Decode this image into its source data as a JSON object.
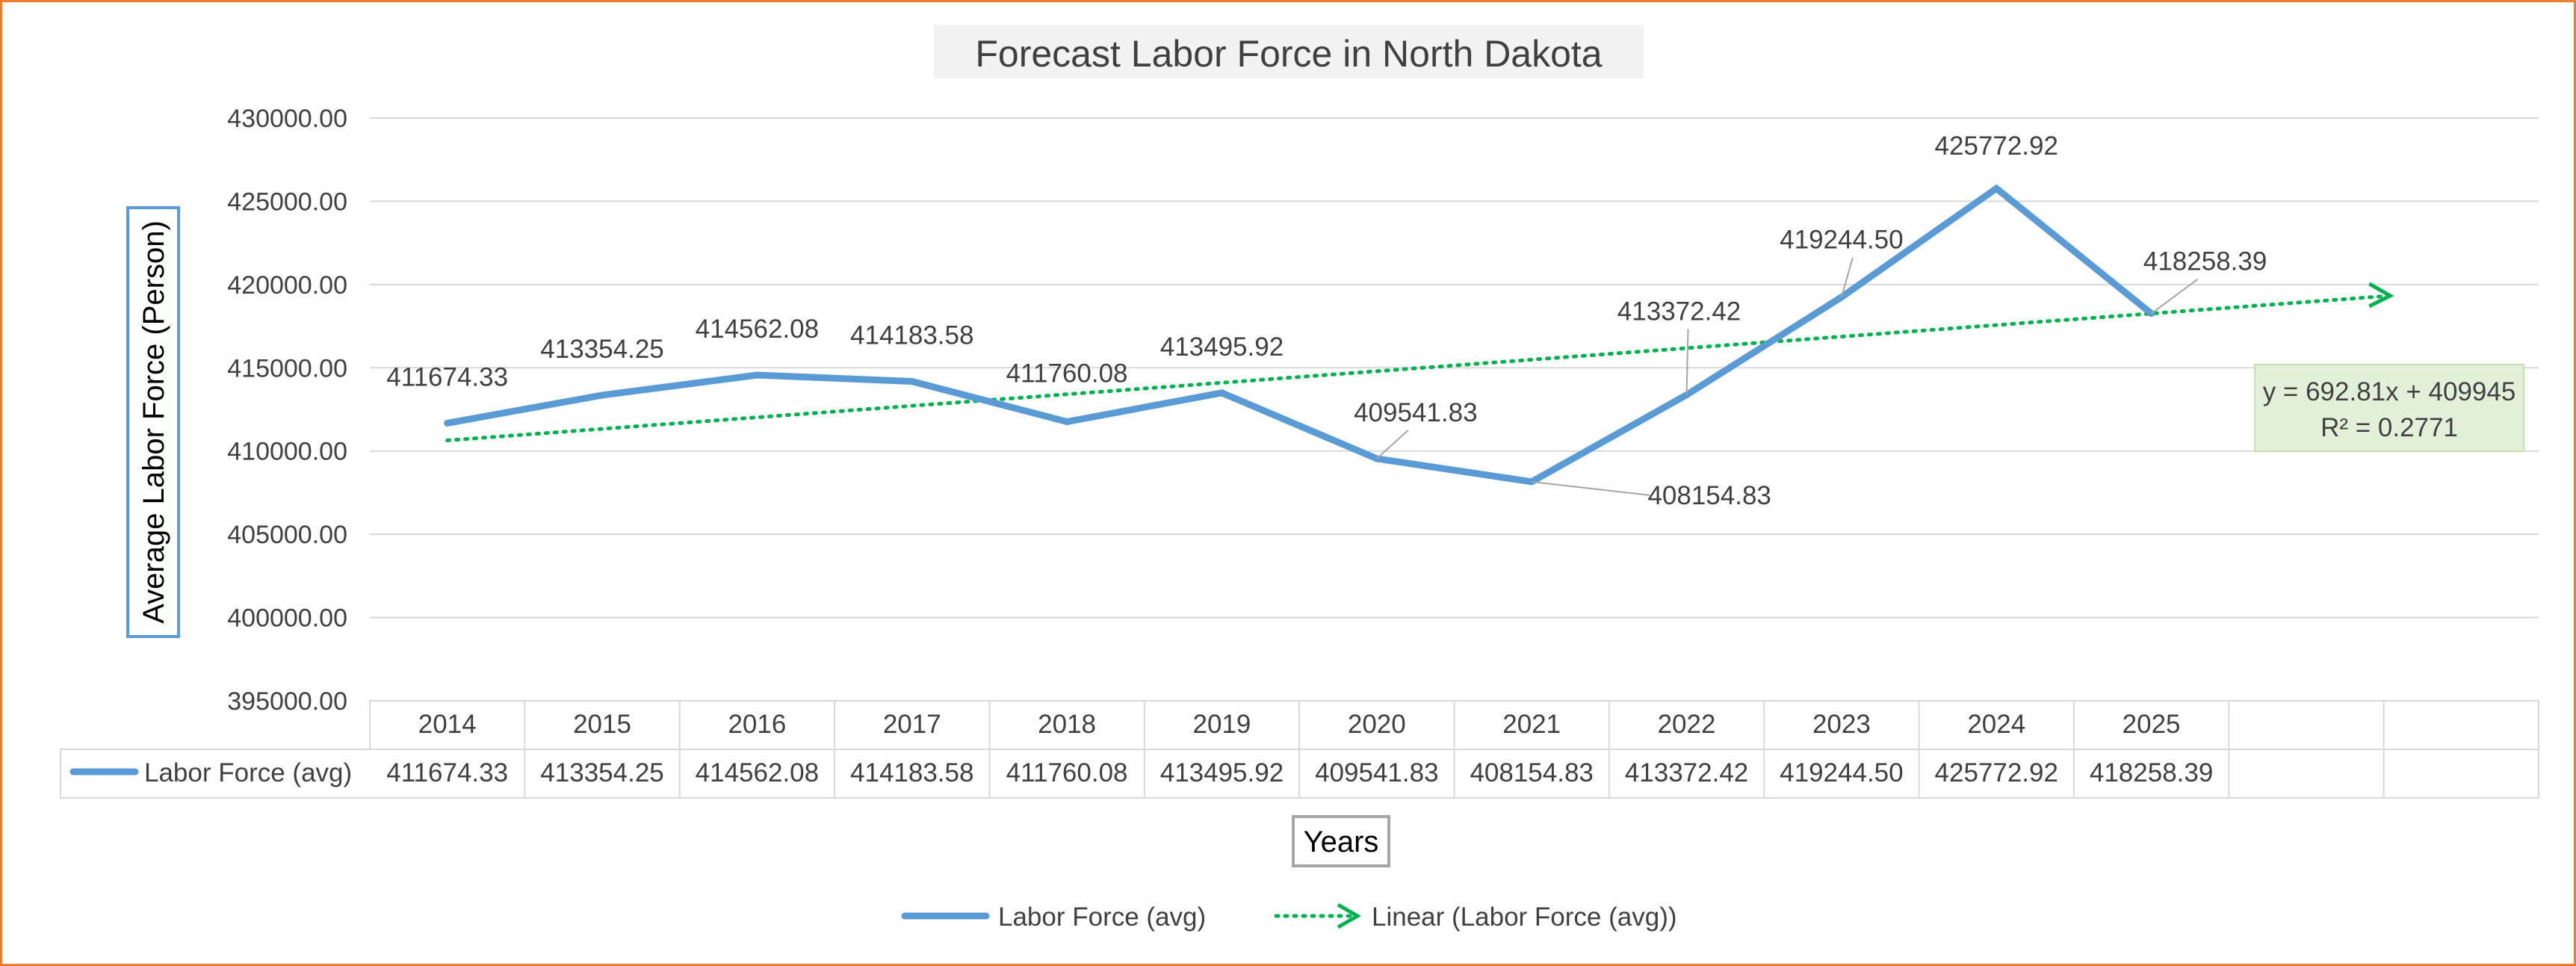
{
  "chart_data": {
    "type": "line",
    "title": "Forecast Labor Force in North Dakota",
    "xlabel": "Years",
    "ylabel": "Average Labor Force (Person)",
    "ylim": [
      395000,
      430000
    ],
    "ytick_step": 5000,
    "yticks": [
      "395000.00",
      "400000.00",
      "405000.00",
      "410000.00",
      "415000.00",
      "420000.00",
      "425000.00",
      "430000.00"
    ],
    "categories": [
      "2014",
      "2015",
      "2016",
      "2017",
      "2018",
      "2019",
      "2020",
      "2021",
      "2022",
      "2023",
      "2024",
      "2025",
      "",
      ""
    ],
    "series": [
      {
        "name": "Labor Force (avg)",
        "color": "#5B9BD5",
        "values": [
          411674.33,
          413354.25,
          414562.08,
          414183.58,
          411760.08,
          413495.92,
          409541.83,
          408154.83,
          413372.42,
          419244.5,
          425772.92,
          418258.39,
          null,
          null
        ],
        "labels": [
          "411674.33",
          "413354.25",
          "414562.08",
          "414183.58",
          "411760.08",
          "413495.92",
          "409541.83",
          "408154.83",
          "413372.42",
          "419244.50",
          "425772.92",
          "418258.39",
          "",
          ""
        ]
      }
    ],
    "trendline": {
      "name": "Linear (Labor Force (avg))",
      "type": "linear",
      "color": "#00B050",
      "slope": 692.81,
      "intercept": 409945,
      "equation": "y = 692.81x + 409945",
      "r_squared": "R² = 0.2771",
      "forecast_periods": 2
    },
    "grid": true,
    "legend": "bottom",
    "data_table": true
  }
}
